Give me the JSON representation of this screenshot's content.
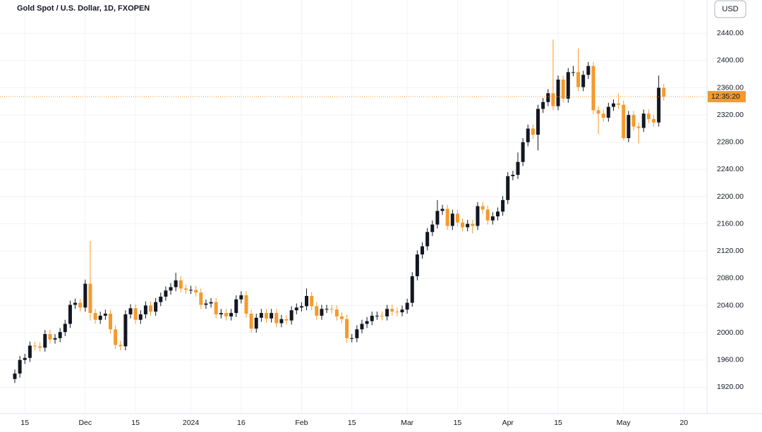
{
  "chart_data": {
    "type": "candlestick",
    "title": "Gold Spot / U.S. Dollar, 1D, FXOPEN",
    "currency_button": "USD",
    "price_label": "12:35:20",
    "up_color": "#131722",
    "down_color": "#f59a2b",
    "grid": true,
    "categories": [
      null,
      null,
      "15",
      null,
      null,
      null,
      null,
      null,
      null,
      null,
      null,
      null,
      null,
      null,
      "Dec",
      null,
      null,
      null,
      null,
      null,
      null,
      null,
      null,
      null,
      "15",
      null,
      null,
      null,
      null,
      null,
      null,
      null,
      null,
      null,
      null,
      "2024",
      null,
      null,
      null,
      null,
      null,
      null,
      null,
      null,
      null,
      "16",
      null,
      null,
      null,
      null,
      null,
      null,
      null,
      null,
      null,
      null,
      null,
      "Feb",
      null,
      null,
      null,
      null,
      null,
      null,
      null,
      null,
      null,
      "15",
      null,
      null,
      null,
      null,
      null,
      null,
      null,
      null,
      null,
      null,
      "Mar",
      null,
      null,
      null,
      null,
      null,
      null,
      null,
      null,
      null,
      "15",
      null,
      null,
      null,
      null,
      null,
      null,
      null,
      null,
      null,
      "Apr",
      null,
      null,
      null,
      null,
      null,
      null,
      null,
      null,
      null,
      "15",
      null,
      null,
      null,
      null,
      null,
      null,
      null,
      null,
      null,
      null,
      null,
      null,
      "May",
      null,
      null,
      null,
      null,
      null,
      null,
      null,
      null,
      null,
      null,
      null,
      "20"
    ],
    "open": [
      1932,
      1940,
      1960,
      1963,
      1981,
      1980,
      1978,
      1998,
      1990,
      1992,
      2001,
      2013,
      2041,
      2044,
      2037,
      2072,
      2029,
      2019,
      2025,
      2028,
      2005,
      1982,
      1980,
      2027,
      2036,
      2019,
      2027,
      2040,
      2031,
      2045,
      2053,
      2062,
      2067,
      2077,
      2065,
      2063,
      2063,
      2059,
      2041,
      2043,
      2045,
      2027,
      2029,
      2024,
      2029,
      2049,
      2055,
      2028,
      2006,
      2022,
      2029,
      2021,
      2029,
      2014,
      2020,
      2018,
      2033,
      2037,
      2039,
      2054,
      2039,
      2025,
      2035,
      2035,
      2034,
      2024,
      2020,
      1992,
      1992,
      2005,
      2013,
      2017,
      2025,
      2025,
      2024,
      2035,
      2031,
      2030,
      2034,
      2044,
      2083,
      2115,
      2127,
      2148,
      2159,
      2179,
      2182,
      2157,
      2175,
      2162,
      2155,
      2160,
      2157,
      2186,
      2181,
      2165,
      2171,
      2178,
      2195,
      2230,
      2232,
      2251,
      2280,
      2300,
      2291,
      2329,
      2339,
      2352,
      2333,
      2372,
      2344,
      2383,
      2383,
      2361,
      2379,
      2392,
      2327,
      2322,
      2316,
      2332,
      2337,
      2335,
      2286,
      2320,
      2303,
      2301,
      2322,
      2314,
      2309,
      2360,
      null,
      null,
      null,
      null
    ],
    "high": [
      1946,
      1966,
      1969,
      1987,
      1987,
      1986,
      2004,
      2004,
      1998,
      2007,
      2019,
      2047,
      2050,
      2050,
      2078,
      2135,
      2035,
      2031,
      2034,
      2034,
      2011,
      1988,
      2033,
      2042,
      2042,
      2033,
      2046,
      2046,
      2051,
      2059,
      2068,
      2073,
      2088,
      2083,
      2071,
      2069,
      2069,
      2065,
      2049,
      2051,
      2051,
      2035,
      2035,
      2035,
      2055,
      2061,
      2061,
      2034,
      2028,
      2035,
      2035,
      2035,
      2035,
      2026,
      2026,
      2039,
      2043,
      2045,
      2065,
      2060,
      2045,
      2041,
      2041,
      2041,
      2040,
      2030,
      2026,
      1998,
      2011,
      2019,
      2023,
      2031,
      2031,
      2031,
      2041,
      2041,
      2037,
      2040,
      2050,
      2089,
      2121,
      2133,
      2154,
      2165,
      2195,
      2188,
      2188,
      2181,
      2181,
      2168,
      2166,
      2166,
      2192,
      2192,
      2187,
      2177,
      2184,
      2201,
      2236,
      2238,
      2265,
      2286,
      2306,
      2306,
      2335,
      2345,
      2358,
      2431,
      2378,
      2378,
      2389,
      2392,
      2418,
      2385,
      2398,
      2398,
      2333,
      2328,
      2338,
      2343,
      2352,
      2341,
      2326,
      2326,
      2309,
      2328,
      2328,
      2320,
      2378,
      2366,
      null,
      null,
      null,
      null
    ],
    "low": [
      1926,
      1934,
      1954,
      1957,
      1974,
      1972,
      1972,
      1984,
      1984,
      1986,
      1995,
      2007,
      2035,
      2031,
      2031,
      2018,
      2013,
      2013,
      2019,
      1999,
      1976,
      1974,
      1974,
      2021,
      2013,
      2013,
      2021,
      2025,
      2025,
      2039,
      2047,
      2056,
      2061,
      2059,
      2057,
      2057,
      2053,
      2035,
      2035,
      2037,
      2021,
      2021,
      2018,
      2018,
      2023,
      2043,
      2022,
      2000,
      2000,
      2016,
      2015,
      2015,
      2008,
      2008,
      2012,
      2012,
      2027,
      2031,
      2033,
      2033,
      2019,
      2019,
      2029,
      2028,
      2018,
      2014,
      1985,
      1986,
      1986,
      1999,
      2007,
      2011,
      2019,
      2018,
      2018,
      2025,
      2024,
      2024,
      2028,
      2038,
      2077,
      2109,
      2121,
      2142,
      2153,
      2173,
      2151,
      2151,
      2156,
      2149,
      2149,
      2146,
      2151,
      2175,
      2159,
      2159,
      2165,
      2172,
      2189,
      2224,
      2226,
      2245,
      2274,
      2285,
      2268,
      2323,
      2333,
      2327,
      2327,
      2338,
      2338,
      2377,
      2355,
      2355,
      2373,
      2321,
      2292,
      2310,
      2310,
      2326,
      2329,
      2283,
      2280,
      2297,
      2278,
      2295,
      2308,
      2303,
      2303,
      2341,
      null,
      null,
      null,
      null
    ],
    "close": [
      1940,
      1960,
      1963,
      1981,
      1980,
      1978,
      1998,
      1990,
      1992,
      2001,
      2013,
      2041,
      2044,
      2037,
      2072,
      2029,
      2019,
      2025,
      2028,
      2005,
      1982,
      1980,
      2027,
      2036,
      2019,
      2027,
      2040,
      2031,
      2045,
      2053,
      2062,
      2067,
      2077,
      2065,
      2063,
      2063,
      2059,
      2041,
      2043,
      2045,
      2027,
      2029,
      2024,
      2029,
      2049,
      2055,
      2028,
      2006,
      2022,
      2029,
      2021,
      2029,
      2014,
      2020,
      2018,
      2033,
      2037,
      2039,
      2054,
      2039,
      2025,
      2035,
      2035,
      2034,
      2024,
      2020,
      1992,
      1992,
      2005,
      2013,
      2017,
      2025,
      2025,
      2024,
      2035,
      2031,
      2030,
      2034,
      2044,
      2083,
      2115,
      2127,
      2148,
      2159,
      2179,
      2182,
      2157,
      2175,
      2162,
      2155,
      2160,
      2157,
      2186,
      2181,
      2165,
      2171,
      2178,
      2195,
      2230,
      2232,
      2251,
      2280,
      2300,
      2291,
      2329,
      2339,
      2352,
      2333,
      2372,
      2344,
      2383,
      2383,
      2361,
      2379,
      2392,
      2327,
      2322,
      2316,
      2332,
      2337,
      2335,
      2286,
      2320,
      2303,
      2301,
      2322,
      2314,
      2309,
      2360,
      2347,
      null,
      null,
      null,
      null
    ],
    "ylim": [
      1881,
      2489
    ],
    "yticks": [
      {
        "value": 1920,
        "label": "1920.00"
      },
      {
        "value": 1960,
        "label": "1960.00"
      },
      {
        "value": 2000,
        "label": "2000.00"
      },
      {
        "value": 2040,
        "label": "2040.00"
      },
      {
        "value": 2080,
        "label": "2080.00"
      },
      {
        "value": 2120,
        "label": "2120.00"
      },
      {
        "value": 2160,
        "label": "2160.00"
      },
      {
        "value": 2200,
        "label": "2200.00"
      },
      {
        "value": 2240,
        "label": "2240.00"
      },
      {
        "value": 2280,
        "label": "2280.00"
      },
      {
        "value": 2320,
        "label": "2320.00"
      },
      {
        "value": 2360,
        "label": "2360.00"
      },
      {
        "value": 2400,
        "label": "2400.00"
      },
      {
        "value": 2440,
        "label": "2440.00"
      }
    ]
  }
}
